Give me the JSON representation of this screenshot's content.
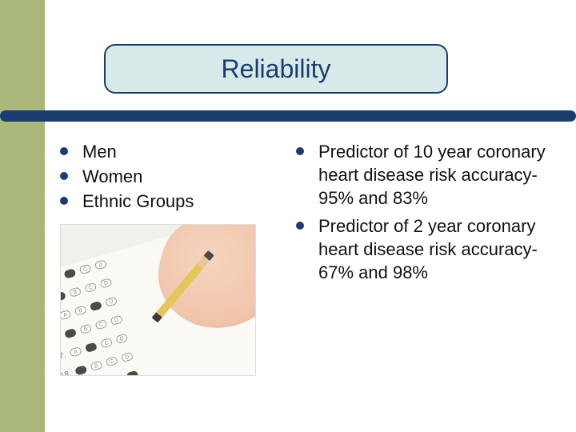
{
  "title": "Reliability",
  "colors": {
    "stripe": "#a9b77b",
    "accent": "#1a3d6d",
    "titleBg": "#d7eae9",
    "text": "#111111"
  },
  "leftBullets": [
    {
      "text": "Men"
    },
    {
      "text": "Women"
    },
    {
      "text": "Ethnic Groups"
    }
  ],
  "rightBullets": [
    {
      "text": "Predictor of 10 year coronary heart disease risk accuracy-95% and 83%"
    },
    {
      "text": "Predictor of 2 year coronary heart disease risk accuracy-67% and 98%"
    }
  ],
  "scantron": {
    "rows": [
      {
        "num": "13.",
        "filled": 1
      },
      {
        "num": "14.",
        "filled": 0
      },
      {
        "num": "15.",
        "filled": 2
      },
      {
        "num": "16.",
        "filled": 0
      },
      {
        "num": "17.",
        "filled": 1
      },
      {
        "num": "18.",
        "filled": 0
      },
      {
        "num": "19.",
        "filled": 3
      },
      {
        "num": "20.",
        "filled": 0
      }
    ],
    "choices": [
      "A",
      "B",
      "C",
      "D"
    ]
  },
  "image": {
    "description": "hand-filling-scantron"
  }
}
